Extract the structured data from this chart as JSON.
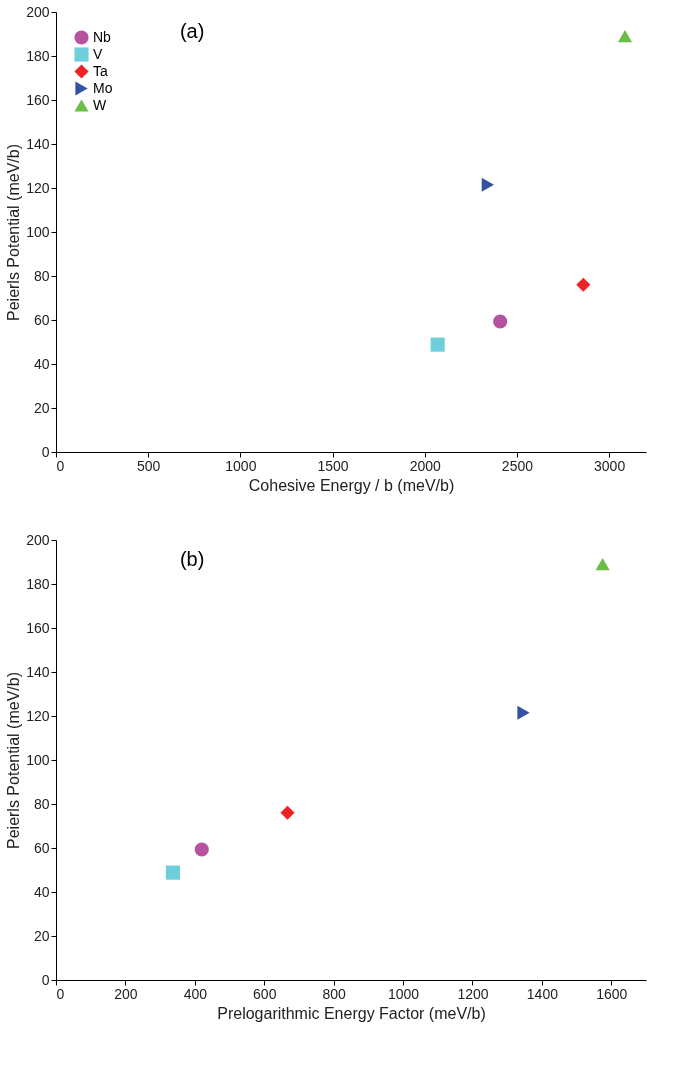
{
  "chart_data": [
    {
      "type": "scatter",
      "xlabel": "Cohesive Energy / b (meV/b)",
      "ylabel": "Peierls Potential (meV/b)",
      "annotations": [
        "(a)"
      ],
      "xlim": [
        0,
        3200
      ],
      "xticks": [
        0,
        500,
        1000,
        1500,
        2000,
        2500,
        3000
      ],
      "ylim": [
        0,
        200
      ],
      "yticks": [
        0,
        20,
        40,
        60,
        80,
        100,
        120,
        140,
        160,
        180,
        200
      ],
      "grid": false,
      "legend": "top left",
      "series": [
        {
          "name": "Nb",
          "color": "#b5539f",
          "marker": "circle",
          "x": [
            2409
          ],
          "values": [
            59.3
          ]
        },
        {
          "name": "V",
          "color": "#6dcfdc",
          "marker": "square",
          "x": [
            2070
          ],
          "values": [
            48.8
          ]
        },
        {
          "name": "Ta",
          "color": "#ee2325",
          "marker": "diamond",
          "x": [
            2860
          ],
          "values": [
            76
          ]
        },
        {
          "name": "Mo",
          "color": "#3452a4",
          "marker": "triangle-right",
          "x": [
            2342
          ],
          "values": [
            121.5
          ]
        },
        {
          "name": "W",
          "color": "#6abd45",
          "marker": "triangle",
          "x": [
            3086
          ],
          "values": [
            189
          ]
        }
      ]
    },
    {
      "type": "scatter",
      "xlabel": "Prelogarithmic Energy Factor (meV/b)",
      "ylabel": "Peierls Potential (meV/b)",
      "annotations": [
        "(b)"
      ],
      "xlim": [
        0,
        1700
      ],
      "xticks": [
        0,
        200,
        400,
        600,
        800,
        1000,
        1200,
        1400,
        1600
      ],
      "ylim": [
        0,
        200
      ],
      "yticks": [
        0,
        20,
        40,
        60,
        80,
        100,
        120,
        140,
        160,
        180,
        200
      ],
      "grid": false,
      "legend": "top left",
      "series": [
        {
          "name": "Nb",
          "color": "#b5539f",
          "marker": "circle",
          "x": [
            420
          ],
          "values": [
            59.3
          ]
        },
        {
          "name": "V",
          "color": "#6dcfdc",
          "marker": "square",
          "x": [
            337
          ],
          "values": [
            48.8
          ]
        },
        {
          "name": "Ta",
          "color": "#ee2325",
          "marker": "diamond",
          "x": [
            667
          ],
          "values": [
            76
          ]
        },
        {
          "name": "Mo",
          "color": "#3452a4",
          "marker": "triangle-right",
          "x": [
            1347
          ],
          "values": [
            121.5
          ]
        },
        {
          "name": "W",
          "color": "#6abd45",
          "marker": "triangle",
          "x": [
            1575
          ],
          "values": [
            189
          ]
        }
      ]
    }
  ]
}
